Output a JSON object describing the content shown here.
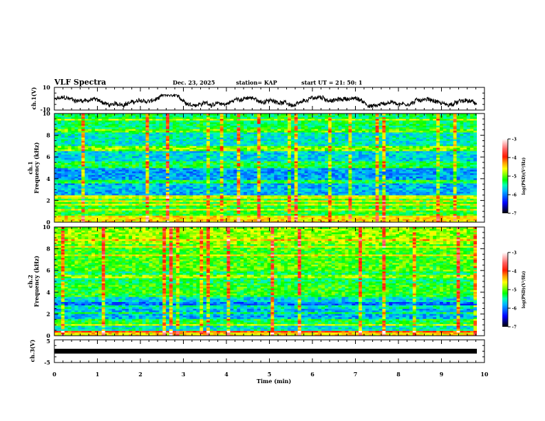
{
  "header": {
    "title": "VLF Spectra",
    "date": "Dec. 23, 2025",
    "station": "station= KAP",
    "start": "start  UT  =   21: 50: 1"
  },
  "chart_data": [
    {
      "type": "line",
      "id": "ch1-waveform",
      "ylabel": "ch.1(V)",
      "ylim": [
        -10,
        10
      ],
      "yticks": [
        "10",
        "-10"
      ],
      "xlim": [
        0,
        10
      ],
      "series_note": "noisy waveform, roughly between -8 and +2 V"
    },
    {
      "type": "heatmap",
      "id": "ch1-spectrogram",
      "ylabel": "ch.1\nFrequency (kHz)",
      "ylabel_line1": "ch.1",
      "ylabel_line2": "Frequency  (kHz)",
      "ylim": [
        0,
        10
      ],
      "yticks": [
        "0",
        "2",
        "4",
        "6",
        "8",
        "10"
      ],
      "xlim": [
        0,
        10
      ],
      "colorbar": {
        "label": "log(PSD)(V²/Hz)",
        "range": [
          -7,
          -3
        ],
        "ticks": [
          "-3",
          "-4",
          "-5",
          "-6",
          "-7"
        ]
      }
    },
    {
      "type": "heatmap",
      "id": "ch2-spectrogram",
      "ylabel_line1": "ch.2",
      "ylabel_line2": "Frequency  (kHz)",
      "ylim": [
        0,
        10
      ],
      "yticks": [
        "0",
        "2",
        "4",
        "6",
        "8",
        "10"
      ],
      "xlim": [
        0,
        10
      ],
      "colorbar": {
        "label": "log(PSD)(V²/Hz)",
        "range": [
          -7,
          -3
        ],
        "ticks": [
          "-3",
          "-4",
          "-5",
          "-6",
          "-7"
        ]
      }
    },
    {
      "type": "line",
      "id": "ch3-waveform",
      "ylabel": "ch.3(V)",
      "ylim": [
        -5,
        5
      ],
      "yticks": [
        "5",
        "-5"
      ],
      "xlim": [
        0,
        10
      ],
      "level": 0
    }
  ],
  "xaxis": {
    "label": "Time  (min)",
    "ticks": [
      "0",
      "1",
      "2",
      "3",
      "4",
      "5",
      "6",
      "7",
      "8",
      "9",
      "10"
    ]
  },
  "colors": {
    "axis": "#000000"
  }
}
